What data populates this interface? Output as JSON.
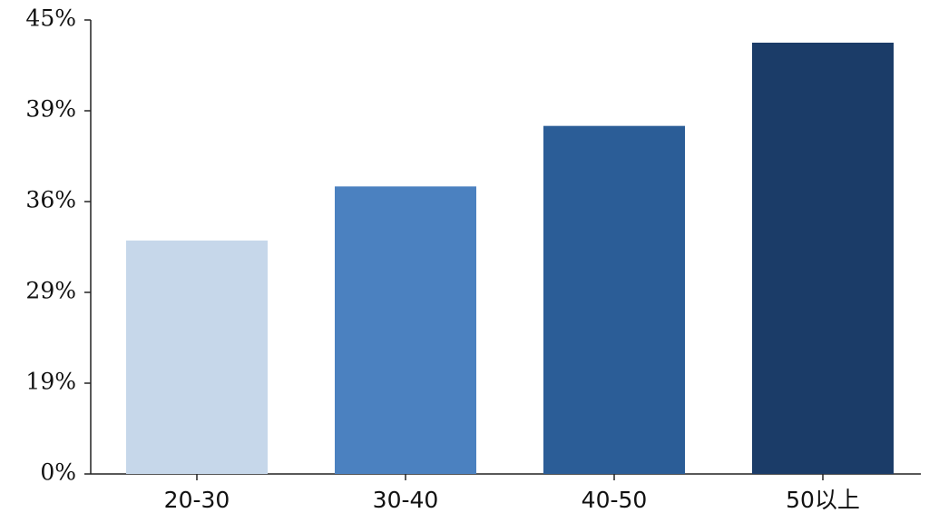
{
  "chart_data": {
    "type": "bar",
    "categories": [
      "20-30",
      "30-40",
      "40-50",
      "50以上"
    ],
    "values": [
      33,
      36.5,
      38.5,
      43.5
    ],
    "colors": [
      "#c6d7ea",
      "#4b81c0",
      "#2b5d97",
      "#1b3c68"
    ],
    "ylim": [
      0,
      45
    ],
    "yticks": [
      {
        "value": 0,
        "label": "0%"
      },
      {
        "value": 19,
        "label": "19%"
      },
      {
        "value": 29,
        "label": "29%"
      },
      {
        "value": 36,
        "label": "36%"
      },
      {
        "value": 39,
        "label": "39%"
      },
      {
        "value": 45,
        "label": "45%"
      }
    ]
  }
}
